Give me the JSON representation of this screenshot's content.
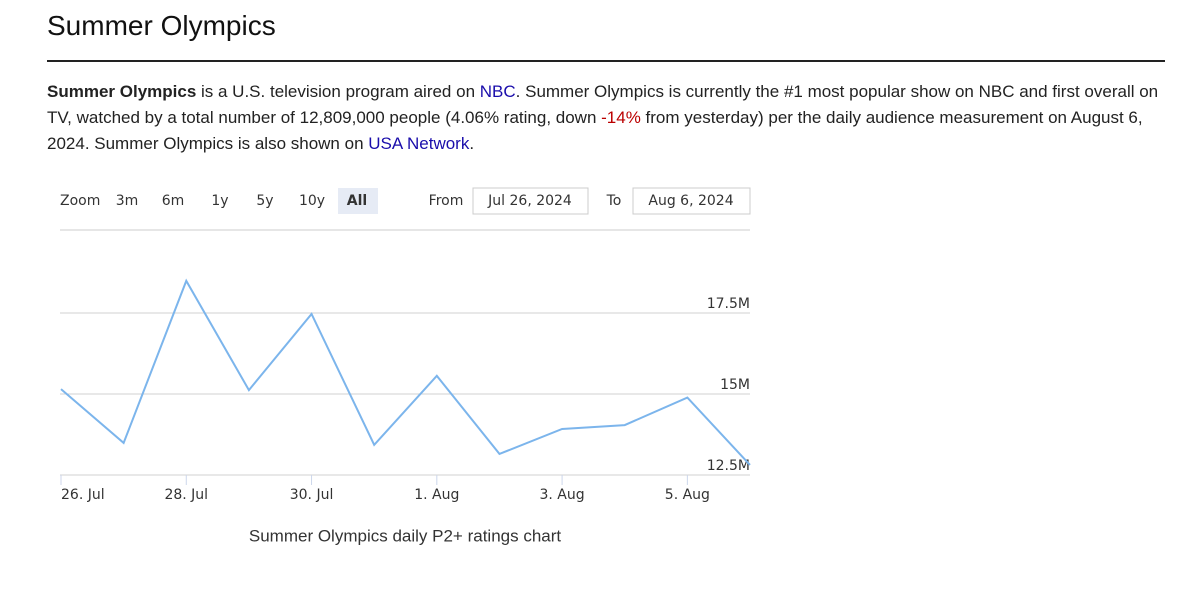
{
  "header": {
    "title": "Summer Olympics"
  },
  "description": [
    {
      "text": "Summer Olympics",
      "style": "bold"
    },
    {
      "text": " is a U.S. television program aired on ",
      "style": "plain"
    },
    {
      "text": "NBC",
      "style": "link"
    },
    {
      "text": ". Summer Olympics is currently the #1 most popular show on NBC and first overall on TV, watched by a total number of 12,809,000 people (4.06% rating, down ",
      "style": "plain"
    },
    {
      "text": "-14%",
      "style": "negative"
    },
    {
      "text": " from yesterday) per the daily audience measurement on August 6, 2024. Summer Olympics is also shown on ",
      "style": "plain"
    },
    {
      "text": "USA Network",
      "style": "link"
    },
    {
      "text": ".",
      "style": "plain"
    }
  ],
  "range_selector": {
    "zoom_label": "Zoom",
    "buttons": [
      "3m",
      "6m",
      "1y",
      "5y",
      "10y",
      "All"
    ],
    "active": "All",
    "from_label": "From",
    "from": "Jul 26, 2024",
    "to_label": "To",
    "to": "Aug 6, 2024"
  },
  "chart_data": {
    "type": "line",
    "caption": "Summer Olympics daily P2+ ratings chart",
    "categories": [
      "26. Jul",
      null,
      "28. Jul",
      null,
      "30. Jul",
      null,
      "1. Aug",
      null,
      "3. Aug",
      null,
      "5. Aug",
      null
    ],
    "values": [
      15.15,
      13.49,
      18.49,
      15.12,
      17.47,
      13.43,
      15.56,
      13.15,
      13.92,
      14.04,
      14.89,
      12.809
    ],
    "color": "#7cb5ec",
    "ylim": [
      12.5,
      20.06
    ],
    "yticks": [
      {
        "value": 12.5,
        "label": "12.5M"
      },
      {
        "value": 15,
        "label": "15M"
      },
      {
        "value": 17.5,
        "label": "17.5M"
      }
    ],
    "grid": true
  }
}
